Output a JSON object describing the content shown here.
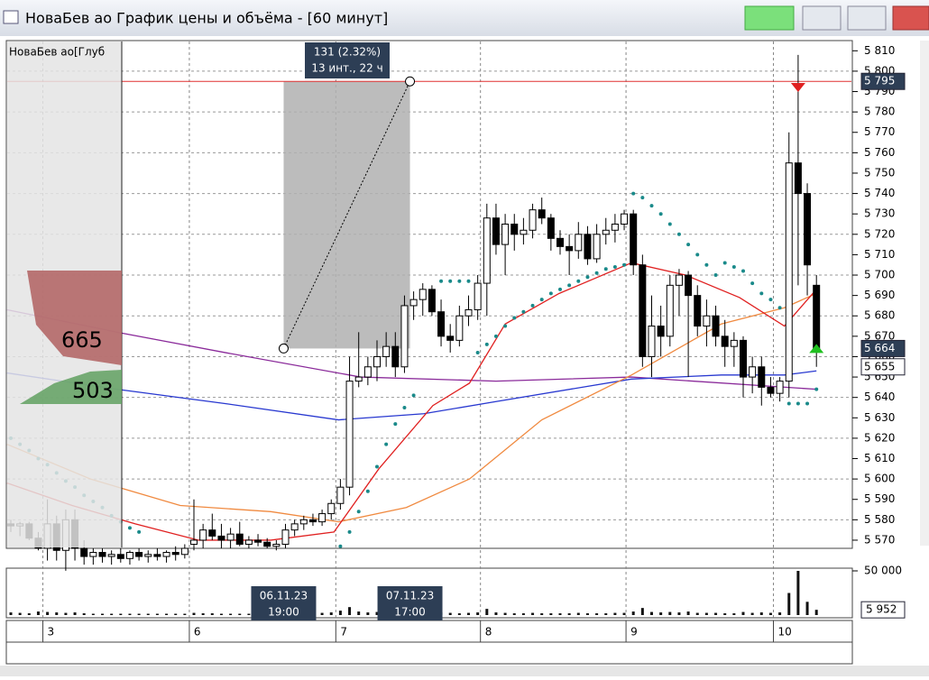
{
  "window": {
    "title": "НоваБев ао График цены и объёма - [60 минут]"
  },
  "glass": {
    "title": "НоваБев ао[Глуб",
    "ask_total": 665,
    "bid_total": 503
  },
  "measure": {
    "line_1": "131 (2.32%)",
    "line_2": "13 инт., 22 ч",
    "start": [
      29.8,
      5664
    ],
    "end": [
      43.6,
      5795
    ]
  },
  "price_axis": {
    "ylim": [
      5566,
      5815
    ],
    "yticks": [
      {
        "value": 5570,
        "label": "5 570"
      },
      {
        "value": 5580,
        "label": "5 580"
      },
      {
        "value": 5590,
        "label": "5 590"
      },
      {
        "value": 5600,
        "label": "5 600"
      },
      {
        "value": 5610,
        "label": "5 610"
      },
      {
        "value": 5620,
        "label": "5 620"
      },
      {
        "value": 5630,
        "label": "5 630"
      },
      {
        "value": 5640,
        "label": "5 640"
      },
      {
        "value": 5650,
        "label": "5 650"
      },
      {
        "value": 5660,
        "label": "5 660"
      },
      {
        "value": 5670,
        "label": "5 670"
      },
      {
        "value": 5680,
        "label": "5 680"
      },
      {
        "value": 5690,
        "label": "5 690"
      },
      {
        "value": 5700,
        "label": "5 700"
      },
      {
        "value": 5710,
        "label": "5 710"
      },
      {
        "value": 5720,
        "label": "5 720"
      },
      {
        "value": 5730,
        "label": "5 730"
      },
      {
        "value": 5740,
        "label": "5 740"
      },
      {
        "value": 5750,
        "label": "5 750"
      },
      {
        "value": 5760,
        "label": "5 760"
      },
      {
        "value": 5770,
        "label": "5 770"
      },
      {
        "value": 5780,
        "label": "5 780"
      },
      {
        "value": 5790,
        "label": "5 790"
      },
      {
        "value": 5800,
        "label": "5 800"
      },
      {
        "value": 5810,
        "label": "5 810"
      }
    ],
    "hline": {
      "value": 5795,
      "label": "5 795",
      "color": "#e03030"
    },
    "last_price": {
      "value": 5664,
      "label": "5 664"
    },
    "level": {
      "value": 5655,
      "label": "5 655"
    }
  },
  "candles": [
    [
      5578,
      5580,
      5574,
      5577
    ],
    [
      5577,
      5579,
      5572,
      5578
    ],
    [
      5578,
      5579,
      5570,
      5571
    ],
    [
      5571,
      5574,
      5565,
      5566
    ],
    [
      5566,
      5590,
      5560,
      5578
    ],
    [
      5578,
      5582,
      5560,
      5565
    ],
    [
      5565,
      5585,
      5555,
      5580
    ],
    [
      5580,
      5585,
      5560,
      5566
    ],
    [
      5566,
      5570,
      5558,
      5562
    ],
    [
      5562,
      5566,
      5558,
      5564
    ],
    [
      5564,
      5566,
      5559,
      5562
    ],
    [
      5562,
      5565,
      5558,
      5563
    ],
    [
      5563,
      5566,
      5559,
      5561
    ],
    [
      5561,
      5565,
      5558,
      5564
    ],
    [
      5564,
      5566,
      5560,
      5562
    ],
    [
      5562,
      5565,
      5559,
      5563
    ],
    [
      5563,
      5566,
      5560,
      5562
    ],
    [
      5562,
      5565,
      5559,
      5564
    ],
    [
      5564,
      5567,
      5560,
      5563
    ],
    [
      5563,
      5568,
      5561,
      5566
    ],
    [
      5568,
      5590,
      5565,
      5570
    ],
    [
      5570,
      5578,
      5566,
      5575
    ],
    [
      5575,
      5583,
      5570,
      5572
    ],
    [
      5572,
      5578,
      5566,
      5570
    ],
    [
      5570,
      5576,
      5566,
      5573
    ],
    [
      5573,
      5579,
      5567,
      5568
    ],
    [
      5568,
      5572,
      5566,
      5570
    ],
    [
      5570,
      5573,
      5567,
      5569
    ],
    [
      5569,
      5571,
      5566,
      5567
    ],
    [
      5567,
      5570,
      5565,
      5568
    ],
    [
      5568,
      5578,
      5566,
      5575
    ],
    [
      5575,
      5580,
      5572,
      5578
    ],
    [
      5578,
      5582,
      5575,
      5580
    ],
    [
      5580,
      5583,
      5577,
      5579
    ],
    [
      5579,
      5585,
      5577,
      5583
    ],
    [
      5583,
      5590,
      5580,
      5588
    ],
    [
      5588,
      5600,
      5585,
      5596
    ],
    [
      5596,
      5660,
      5592,
      5648
    ],
    [
      5648,
      5672,
      5645,
      5650
    ],
    [
      5650,
      5660,
      5646,
      5655
    ],
    [
      5655,
      5668,
      5648,
      5660
    ],
    [
      5660,
      5672,
      5655,
      5665
    ],
    [
      5665,
      5672,
      5650,
      5655
    ],
    [
      5655,
      5690,
      5652,
      5685
    ],
    [
      5685,
      5692,
      5678,
      5688
    ],
    [
      5688,
      5696,
      5680,
      5693
    ],
    [
      5693,
      5695,
      5680,
      5682
    ],
    [
      5682,
      5688,
      5665,
      5670
    ],
    [
      5670,
      5676,
      5662,
      5668
    ],
    [
      5668,
      5685,
      5665,
      5680
    ],
    [
      5680,
      5690,
      5675,
      5683
    ],
    [
      5683,
      5700,
      5678,
      5696
    ],
    [
      5696,
      5735,
      5680,
      5728
    ],
    [
      5728,
      5735,
      5710,
      5715
    ],
    [
      5715,
      5730,
      5700,
      5725
    ],
    [
      5725,
      5730,
      5712,
      5720
    ],
    [
      5720,
      5728,
      5715,
      5722
    ],
    [
      5722,
      5735,
      5718,
      5732
    ],
    [
      5732,
      5738,
      5725,
      5728
    ],
    [
      5728,
      5730,
      5712,
      5718
    ],
    [
      5718,
      5722,
      5710,
      5714
    ],
    [
      5714,
      5720,
      5700,
      5712
    ],
    [
      5712,
      5726,
      5708,
      5720
    ],
    [
      5720,
      5724,
      5705,
      5708
    ],
    [
      5708,
      5725,
      5706,
      5720
    ],
    [
      5720,
      5728,
      5715,
      5722
    ],
    [
      5722,
      5730,
      5716,
      5725
    ],
    [
      5725,
      5732,
      5722,
      5730
    ],
    [
      5730,
      5732,
      5700,
      5705
    ],
    [
      5705,
      5710,
      5655,
      5660
    ],
    [
      5660,
      5690,
      5650,
      5675
    ],
    [
      5675,
      5685,
      5660,
      5670
    ],
    [
      5670,
      5700,
      5665,
      5695
    ],
    [
      5695,
      5703,
      5680,
      5700
    ],
    [
      5700,
      5702,
      5650,
      5690
    ],
    [
      5690,
      5695,
      5670,
      5675
    ],
    [
      5675,
      5688,
      5665,
      5680
    ],
    [
      5680,
      5685,
      5665,
      5670
    ],
    [
      5670,
      5678,
      5655,
      5665
    ],
    [
      5665,
      5672,
      5655,
      5668
    ],
    [
      5668,
      5670,
      5640,
      5650
    ],
    [
      5650,
      5660,
      5642,
      5655
    ],
    [
      5655,
      5660,
      5636,
      5645
    ],
    [
      5645,
      5650,
      5640,
      5642
    ],
    [
      5642,
      5650,
      5638,
      5648
    ],
    [
      5648,
      5770,
      5640,
      5755
    ],
    [
      5755,
      5808,
      5695,
      5740
    ],
    [
      5740,
      5745,
      5690,
      5705
    ],
    [
      5695,
      5700,
      5655,
      5664
    ]
  ],
  "lines": [
    {
      "color": "#8a2a9a",
      "points": [
        [
          -0.4,
          5683
        ],
        [
          11.6,
          5672
        ],
        [
          23.4,
          5662
        ],
        [
          38.2,
          5650
        ],
        [
          53,
          5648
        ],
        [
          67.8,
          5650
        ],
        [
          88,
          5644
        ]
      ]
    },
    {
      "color": "#2838d0",
      "points": [
        [
          -0.4,
          5652
        ],
        [
          11.6,
          5644
        ],
        [
          23.4,
          5637
        ],
        [
          35.8,
          5629
        ],
        [
          45.1,
          5632
        ],
        [
          53,
          5638
        ],
        [
          67.8,
          5649
        ],
        [
          77.6,
          5651
        ],
        [
          84.5,
          5651
        ],
        [
          88,
          5653
        ]
      ]
    },
    {
      "color": "#f08a40",
      "points": [
        [
          -0.4,
          5617
        ],
        [
          8.7,
          5600
        ],
        [
          18.5,
          5587
        ],
        [
          28.4,
          5584
        ],
        [
          35.8,
          5579
        ],
        [
          43.2,
          5586
        ],
        [
          50.1,
          5600
        ],
        [
          58,
          5629
        ],
        [
          67.8,
          5651
        ],
        [
          77.6,
          5676
        ],
        [
          84.5,
          5684
        ],
        [
          88,
          5691
        ]
      ]
    },
    {
      "color": "#e02020",
      "points": [
        [
          -0.4,
          5598
        ],
        [
          6.7,
          5587
        ],
        [
          13.6,
          5578
        ],
        [
          20.5,
          5570
        ],
        [
          28.4,
          5570
        ],
        [
          35.3,
          5574
        ],
        [
          40.2,
          5605
        ],
        [
          46.1,
          5636
        ],
        [
          50.1,
          5647
        ],
        [
          54,
          5676
        ],
        [
          59.9,
          5691
        ],
        [
          67.8,
          5706
        ],
        [
          73.7,
          5700
        ],
        [
          79.6,
          5689
        ],
        [
          84.5,
          5675
        ],
        [
          88,
          5693
        ]
      ]
    }
  ],
  "sar": {
    "color": "#1a8a8a",
    "points": [
      [
        0,
        5620
      ],
      [
        1,
        5617
      ],
      [
        2,
        5614
      ],
      [
        3,
        5610
      ],
      [
        4,
        5607
      ],
      [
        5,
        5603
      ],
      [
        6,
        5599
      ],
      [
        7,
        5596
      ],
      [
        8,
        5592
      ],
      [
        9,
        5589
      ],
      [
        10,
        5586
      ],
      [
        11,
        5582
      ],
      [
        12,
        5579
      ],
      [
        13,
        5576
      ],
      [
        14,
        5574
      ],
      [
        36,
        5567
      ],
      [
        37,
        5574
      ],
      [
        38,
        5584
      ],
      [
        39,
        5594
      ],
      [
        40,
        5606
      ],
      [
        41,
        5617
      ],
      [
        42,
        5627
      ],
      [
        43,
        5635
      ],
      [
        44,
        5641
      ],
      [
        47,
        5697
      ],
      [
        48,
        5697
      ],
      [
        49,
        5697
      ],
      [
        50,
        5697
      ],
      [
        51,
        5662
      ],
      [
        52,
        5666
      ],
      [
        53,
        5670
      ],
      [
        54,
        5675
      ],
      [
        55,
        5679
      ],
      [
        56,
        5682
      ],
      [
        57,
        5685
      ],
      [
        58,
        5688
      ],
      [
        59,
        5691
      ],
      [
        60,
        5693
      ],
      [
        61,
        5695
      ],
      [
        62,
        5697
      ],
      [
        63,
        5699
      ],
      [
        64,
        5701
      ],
      [
        65,
        5703
      ],
      [
        66,
        5704
      ],
      [
        67,
        5705
      ],
      [
        68,
        5740
      ],
      [
        69,
        5738
      ],
      [
        70,
        5734
      ],
      [
        71,
        5730
      ],
      [
        72,
        5725
      ],
      [
        73,
        5720
      ],
      [
        74,
        5715
      ],
      [
        75,
        5710
      ],
      [
        76,
        5705
      ],
      [
        77,
        5700
      ],
      [
        78,
        5706
      ],
      [
        79,
        5704
      ],
      [
        80,
        5702
      ],
      [
        81,
        5696
      ],
      [
        82,
        5691
      ],
      [
        83,
        5688
      ],
      [
        84,
        5684
      ],
      [
        85,
        5637
      ],
      [
        86,
        5637
      ],
      [
        87,
        5637
      ],
      [
        88,
        5644
      ]
    ]
  },
  "signals": [
    {
      "candle": 86,
      "value": 5792,
      "dir": "down",
      "color": "#e02020"
    },
    {
      "candle": 88,
      "value": 5664,
      "dir": "up",
      "color": "#20c020"
    }
  ],
  "volume": {
    "ylim": [
      0,
      50000
    ],
    "yticks": [
      {
        "value": 50000,
        "label": "50 000"
      }
    ],
    "values": [
      3000,
      2500,
      2000,
      4000,
      3500,
      3000,
      2500,
      3000,
      2000,
      1500,
      1500,
      1500,
      1500,
      1500,
      1500,
      1500,
      1500,
      1500,
      1500,
      1500,
      2500,
      2000,
      2000,
      1500,
      1500,
      1500,
      1500,
      1500,
      1500,
      1500,
      2000,
      2000,
      2000,
      2000,
      2500,
      3000,
      5000,
      9000,
      4000,
      3000,
      3500,
      4000,
      3000,
      6000,
      3000,
      2500,
      3000,
      3000,
      2500,
      2000,
      2500,
      3000,
      7000,
      3000,
      2500,
      2000,
      2000,
      2500,
      2000,
      2000,
      2000,
      2000,
      2500,
      2000,
      2000,
      2000,
      2500,
      2500,
      4000,
      8000,
      3500,
      3000,
      3500,
      3000,
      4000,
      2500,
      2500,
      2500,
      2000,
      2000,
      3500,
      2500,
      3000,
      2500,
      3000,
      25000,
      50000,
      15000,
      5952
    ],
    "last_label": "5 952"
  },
  "tooltips": [
    {
      "date": "06.11.23",
      "time": "19:00",
      "candle": 29.8
    },
    {
      "date": "07.11.23",
      "time": "17:00",
      "candle": 43.6
    }
  ],
  "days": [
    {
      "label": "3",
      "candle": 3.5
    },
    {
      "label": "6",
      "candle": 19.5
    },
    {
      "label": "7",
      "candle": 35.5
    },
    {
      "label": "8",
      "candle": 51.3
    },
    {
      "label": "9",
      "candle": 67.2
    },
    {
      "label": "10",
      "candle": 83.3
    }
  ]
}
